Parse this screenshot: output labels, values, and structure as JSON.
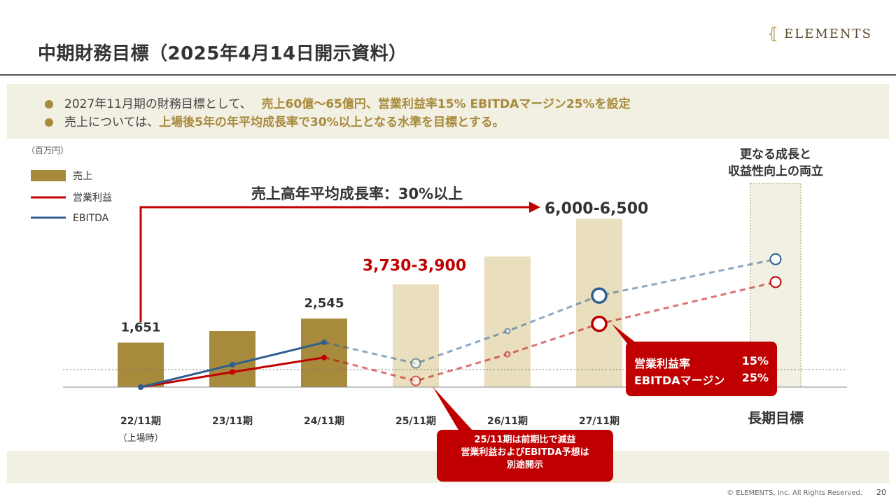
{
  "header": {
    "title": "中期財務目標（2025年4月14日開示資料）",
    "logo_text": "ELEMENTS",
    "logo_mark": "⦃"
  },
  "bullets": [
    {
      "plain": "2027年11月期の財務目標として、",
      "accent": "売上60億～65億円、営業利益率15% EBITDAマージン25%を設定"
    },
    {
      "plain": "売上については、",
      "accent": "上場後5年の年平均成長率で30%以上となる水準を目標とする。"
    }
  ],
  "callouts": {
    "margin": {
      "line1_label": "営業利益率",
      "line1_value": "15%",
      "line2_label": "EBITDAマージン",
      "line2_value": "25%"
    },
    "note": {
      "line1": "25/11期は前期比で減益",
      "line2": "営業利益およびEBITDA予想は",
      "line3": "別途開示"
    }
  },
  "footer": {
    "copyright": "© ELEMENTS, Inc. All Rights Reserved.",
    "page": "20"
  },
  "colors": {
    "gold": "#a88a3c",
    "gold_light": "#e9dfbf",
    "red": "#c00000",
    "blue": "#2e5f8f",
    "beige": "#f2efe3"
  },
  "chart_data": {
    "type": "bar",
    "unit_label": "（百万円）",
    "legend": [
      "売上",
      "営業利益",
      "EBITDA"
    ],
    "categories": [
      "22/11期",
      "23/11期",
      "24/11期",
      "25/11期",
      "26/11期",
      "27/11期",
      "長期目標"
    ],
    "category_sublabels": [
      "（上場時）",
      "",
      "",
      "",
      "",
      "",
      ""
    ],
    "series": [
      {
        "name": "売上",
        "kind": "bar",
        "values": [
          1651,
          2080,
          2545,
          3815,
          4850,
          6250,
          null
        ],
        "forecast_from_index": 3
      },
      {
        "name": "営業利益",
        "kind": "line",
        "values": [
          0,
          560,
          1100,
          230,
          1220,
          2350,
          3900
        ],
        "forecast_from_index": 2
      },
      {
        "name": "EBITDA",
        "kind": "line",
        "values": [
          0,
          830,
          1660,
          880,
          2080,
          3400,
          4750
        ],
        "forecast_from_index": 2
      }
    ],
    "data_labels": [
      {
        "index": 0,
        "text": "1,651"
      },
      {
        "index": 2,
        "text": "2,545"
      },
      {
        "index": 3,
        "text": "3,730-3,900",
        "color": "#c00000"
      },
      {
        "index": 5,
        "text": "6,000-6,500"
      }
    ],
    "growth_arrow_label": "売上高年平均成長率：30%以上",
    "long_term_label": "更なる成長と\n収益性向上の両立",
    "ylim": [
      0,
      7800
    ],
    "grid": false
  }
}
